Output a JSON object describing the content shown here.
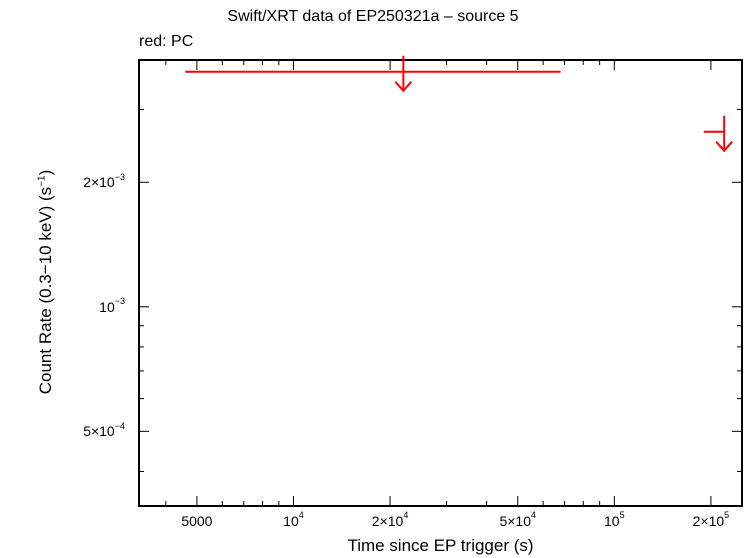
{
  "chart_data": {
    "type": "scatter",
    "title": "Swift/XRT data of EP250321a – source 5",
    "subtitle": "red: PC",
    "xlabel": "Time since EP trigger (s)",
    "ylabel_parts": {
      "base": "Count Rate (0.3−10 keV) (s",
      "exp": "−1",
      "end": ")"
    },
    "x_scale": "log",
    "y_scale": "log",
    "xlim": [
      3300,
      250000
    ],
    "ylim": [
      0.00033,
      0.00395
    ],
    "x_ticks": [
      {
        "value": 5000,
        "base": "5000",
        "exp": ""
      },
      {
        "value": 10000,
        "base": "10",
        "exp": "4"
      },
      {
        "value": 20000,
        "base": "2×10",
        "exp": "4"
      },
      {
        "value": 50000,
        "base": "5×10",
        "exp": "4"
      },
      {
        "value": 100000,
        "base": "10",
        "exp": "5"
      },
      {
        "value": 200000,
        "base": "2×10",
        "exp": "5"
      }
    ],
    "y_ticks": [
      {
        "value": 0.0005,
        "base": "5×10",
        "exp": "−4"
      },
      {
        "value": 0.001,
        "base": "10",
        "exp": "−3"
      },
      {
        "value": 0.002,
        "base": "2×10",
        "exp": "−3"
      }
    ],
    "series": [
      {
        "color": "#ff0000",
        "kind": "upper_limits",
        "points": [
          {
            "x": 22000,
            "x_low": 4600,
            "x_high": 68000,
            "y": 0.0037
          },
          {
            "x": 220000,
            "x_low": 190000,
            "x_high": 220000,
            "y": 0.00265
          }
        ]
      }
    ]
  }
}
